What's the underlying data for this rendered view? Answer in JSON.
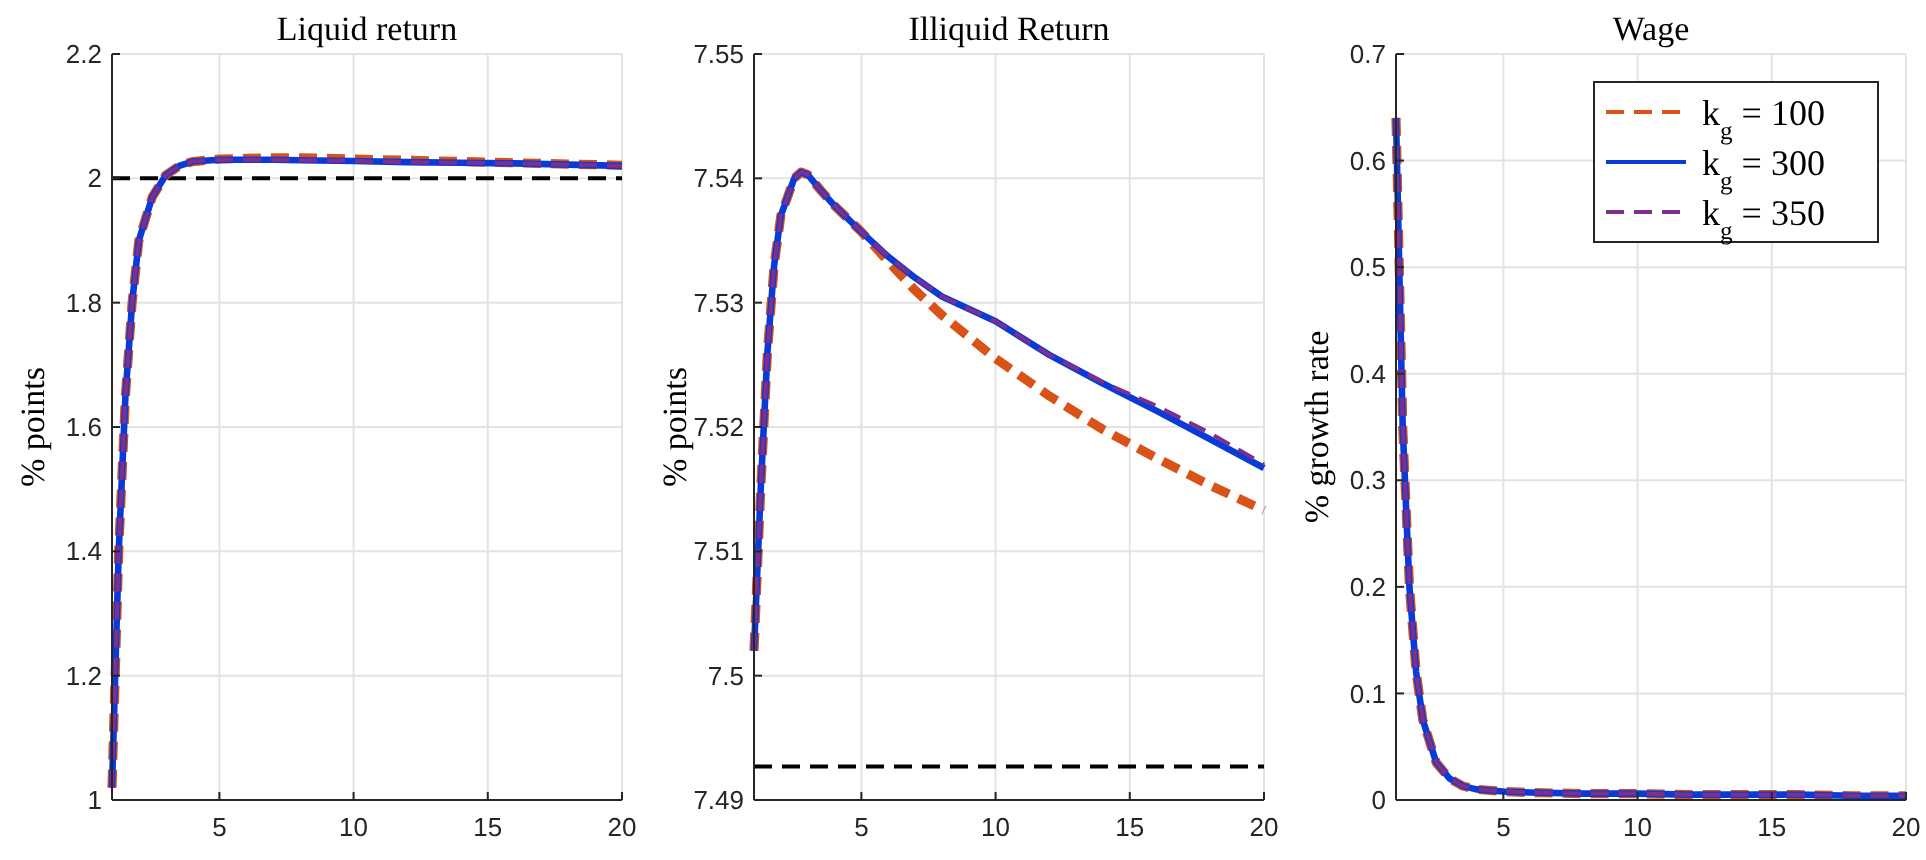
{
  "chart_data": [
    {
      "type": "line",
      "title": "Liquid return",
      "ylabel": "% points",
      "x": [
        1,
        1.25,
        1.5,
        1.75,
        2,
        2.5,
        3,
        3.5,
        4,
        5,
        6,
        7,
        8,
        10,
        12,
        14,
        16,
        18,
        20
      ],
      "xlim": [
        1,
        20
      ],
      "xticks": [
        5,
        10,
        15,
        20
      ],
      "ylim": [
        1,
        2.2
      ],
      "yticks": [
        1,
        1.2,
        1.4,
        1.6,
        1.8,
        2,
        2.2
      ],
      "grid": true,
      "series": [
        {
          "color": "#d95319",
          "line_style": "dashed",
          "values": [
            1.02,
            1.4,
            1.65,
            1.8,
            1.9,
            1.97,
            2.005,
            2.02,
            2.027,
            2.031,
            2.032,
            2.033,
            2.033,
            2.031,
            2.029,
            2.027,
            2.025,
            2.023,
            2.021
          ]
        },
        {
          "color": "#0b3bd6",
          "line_style": "solid",
          "values": [
            1.02,
            1.4,
            1.65,
            1.8,
            1.9,
            1.97,
            2.005,
            2.02,
            2.027,
            2.03,
            2.03,
            2.03,
            2.029,
            2.028,
            2.026,
            2.025,
            2.024,
            2.022,
            2.02
          ]
        },
        {
          "color": "#7e2f8e",
          "line_style": "dashed",
          "values": [
            1.02,
            1.4,
            1.65,
            1.8,
            1.9,
            1.97,
            2.005,
            2.02,
            2.027,
            2.03,
            2.03,
            2.03,
            2.029,
            2.028,
            2.026,
            2.025,
            2.024,
            2.022,
            2.02
          ]
        }
      ],
      "ref_lines": [
        {
          "axis": "y",
          "value": 2,
          "color": "#000000",
          "line_style": "dashed"
        }
      ]
    },
    {
      "type": "line",
      "title": "Illiquid Return",
      "ylabel": "% points",
      "x": [
        1,
        1.25,
        1.5,
        1.75,
        2,
        2.5,
        2.75,
        3,
        3.5,
        4,
        5,
        6,
        7,
        8,
        10,
        12,
        14,
        16,
        18,
        20
      ],
      "xlim": [
        1,
        20
      ],
      "xticks": [
        5,
        10,
        15,
        20
      ],
      "ylim": [
        7.49,
        7.55
      ],
      "yticks": [
        7.49,
        7.5,
        7.51,
        7.52,
        7.53,
        7.54,
        7.55
      ],
      "grid": true,
      "series": [
        {
          "color": "#d95319",
          "line_style": "dashed",
          "values": [
            7.502,
            7.515,
            7.526,
            7.533,
            7.537,
            7.54,
            7.5405,
            7.5403,
            7.539,
            7.5378,
            7.5357,
            7.5333,
            7.531,
            7.529,
            7.5255,
            7.5225,
            7.5198,
            7.5175,
            7.5153,
            7.5133
          ]
        },
        {
          "color": "#0b3bd6",
          "line_style": "solid",
          "values": [
            7.502,
            7.515,
            7.526,
            7.533,
            7.537,
            7.54,
            7.5405,
            7.5403,
            7.539,
            7.5378,
            7.5357,
            7.5337,
            7.532,
            7.5305,
            7.5285,
            7.5258,
            7.5235,
            7.5213,
            7.519,
            7.5167
          ]
        },
        {
          "color": "#7e2f8e",
          "line_style": "dashed",
          "values": [
            7.502,
            7.515,
            7.526,
            7.533,
            7.537,
            7.54,
            7.5405,
            7.5403,
            7.539,
            7.5378,
            7.5357,
            7.5337,
            7.532,
            7.5305,
            7.5285,
            7.5258,
            7.5236,
            7.5217,
            7.5195,
            7.517
          ]
        }
      ],
      "ref_lines": [
        {
          "axis": "y",
          "value": 7.4927,
          "color": "#000000",
          "line_style": "dashed"
        }
      ]
    },
    {
      "type": "line",
      "title": "Wage",
      "ylabel": "% growth rate",
      "x": [
        1,
        1.25,
        1.5,
        1.75,
        2,
        2.5,
        3,
        3.5,
        4,
        5,
        6,
        8,
        10,
        12,
        14,
        16,
        18,
        20
      ],
      "xlim": [
        1,
        20
      ],
      "xticks": [
        5,
        10,
        15,
        20
      ],
      "ylim": [
        0,
        0.7
      ],
      "yticks": [
        0,
        0.1,
        0.2,
        0.3,
        0.4,
        0.5,
        0.6,
        0.7
      ],
      "grid": true,
      "legend": "top right",
      "series": [
        {
          "name": "k$_{g}$ = 100",
          "color": "#d95319",
          "line_style": "dashed",
          "values": [
            0.64,
            0.35,
            0.2,
            0.12,
            0.075,
            0.035,
            0.02,
            0.013,
            0.01,
            0.008,
            0.007,
            0.006,
            0.006,
            0.005,
            0.005,
            0.005,
            0.004,
            0.004
          ]
        },
        {
          "name": "k$_{g}$ = 300",
          "color": "#0b3bd6",
          "line_style": "solid",
          "values": [
            0.64,
            0.35,
            0.2,
            0.12,
            0.075,
            0.035,
            0.02,
            0.013,
            0.01,
            0.008,
            0.007,
            0.006,
            0.006,
            0.005,
            0.005,
            0.005,
            0.004,
            0.004
          ]
        },
        {
          "name": "k$_{g}$ = 350",
          "color": "#7e2f8e",
          "line_style": "dashed",
          "values": [
            0.64,
            0.35,
            0.2,
            0.12,
            0.075,
            0.035,
            0.02,
            0.013,
            0.01,
            0.008,
            0.007,
            0.006,
            0.006,
            0.005,
            0.005,
            0.005,
            0.004,
            0.004
          ]
        }
      ]
    }
  ]
}
